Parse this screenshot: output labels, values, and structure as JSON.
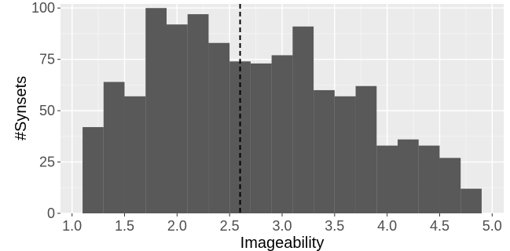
{
  "chart_data": {
    "type": "bar",
    "xlabel": "Imageability",
    "ylabel": "#Synsets",
    "xlim": [
      0.89,
      5.11
    ],
    "ylim": [
      0,
      102
    ],
    "x_ticks": [
      1.0,
      1.5,
      2.0,
      2.5,
      3.0,
      3.5,
      4.0,
      4.5,
      5.0
    ],
    "x_tick_labels": [
      "1.0",
      "1.5",
      "2.0",
      "2.5",
      "3.0",
      "3.5",
      "4.0",
      "4.5",
      "5.0"
    ],
    "y_ticks": [
      0,
      25,
      50,
      75,
      100
    ],
    "y_tick_labels": [
      "0",
      "25",
      "50",
      "75",
      "100"
    ],
    "bin_width": 0.2,
    "bins": [
      {
        "x0": 1.1,
        "x1": 1.3,
        "count": 42
      },
      {
        "x0": 1.3,
        "x1": 1.5,
        "count": 64
      },
      {
        "x0": 1.5,
        "x1": 1.7,
        "count": 57
      },
      {
        "x0": 1.7,
        "x1": 1.9,
        "count": 100
      },
      {
        "x0": 1.9,
        "x1": 2.1,
        "count": 92
      },
      {
        "x0": 2.1,
        "x1": 2.3,
        "count": 97
      },
      {
        "x0": 2.3,
        "x1": 2.5,
        "count": 83
      },
      {
        "x0": 2.5,
        "x1": 2.7,
        "count": 74
      },
      {
        "x0": 2.7,
        "x1": 2.9,
        "count": 73
      },
      {
        "x0": 2.9,
        "x1": 3.1,
        "count": 77
      },
      {
        "x0": 3.1,
        "x1": 3.3,
        "count": 91
      },
      {
        "x0": 3.3,
        "x1": 3.5,
        "count": 60
      },
      {
        "x0": 3.5,
        "x1": 3.7,
        "count": 57
      },
      {
        "x0": 3.7,
        "x1": 3.9,
        "count": 62
      },
      {
        "x0": 3.9,
        "x1": 4.1,
        "count": 33
      },
      {
        "x0": 4.1,
        "x1": 4.3,
        "count": 36
      },
      {
        "x0": 4.3,
        "x1": 4.5,
        "count": 33
      },
      {
        "x0": 4.5,
        "x1": 4.7,
        "count": 27
      },
      {
        "x0": 4.7,
        "x1": 4.9,
        "count": 12
      }
    ],
    "reference_line": {
      "x": 2.6,
      "style": "dashed"
    },
    "grid": true,
    "legend": false
  },
  "colors": {
    "panel_background": "#ebebeb",
    "grid_major": "#ffffff",
    "grid_minor": "#f5f5f5",
    "bar_fill": "#595959",
    "reference_line": "#000000"
  }
}
